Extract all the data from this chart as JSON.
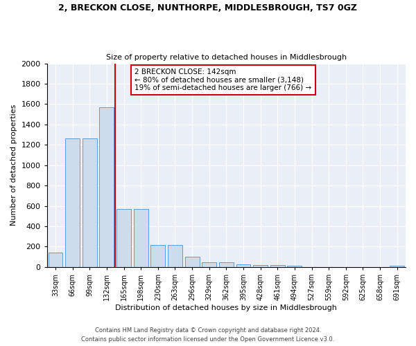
{
  "title1": "2, BRECKON CLOSE, NUNTHORPE, MIDDLESBROUGH, TS7 0GZ",
  "title2": "Size of property relative to detached houses in Middlesbrough",
  "xlabel": "Distribution of detached houses by size in Middlesbrough",
  "ylabel": "Number of detached properties",
  "categories": [
    "33sqm",
    "66sqm",
    "99sqm",
    "132sqm",
    "165sqm",
    "198sqm",
    "230sqm",
    "263sqm",
    "296sqm",
    "329sqm",
    "362sqm",
    "395sqm",
    "428sqm",
    "461sqm",
    "494sqm",
    "527sqm",
    "559sqm",
    "592sqm",
    "625sqm",
    "658sqm",
    "691sqm"
  ],
  "values": [
    140,
    1265,
    1265,
    1570,
    570,
    570,
    215,
    215,
    100,
    50,
    50,
    25,
    20,
    20,
    15,
    0,
    0,
    0,
    0,
    0,
    15
  ],
  "bar_color": "#ccdcec",
  "bar_edge_color": "#6699cc",
  "red_line_index": 3,
  "property_label": "2 BRECKON CLOSE: 142sqm",
  "annotation_line1": "← 80% of detached houses are smaller (3,148)",
  "annotation_line2": "19% of semi-detached houses are larger (766) →",
  "vline_color": "#cc0000",
  "background_color": "#eaeff7",
  "footnote1": "Contains HM Land Registry data © Crown copyright and database right 2024.",
  "footnote2": "Contains public sector information licensed under the Open Government Licence v3.0.",
  "ylim": [
    0,
    2000
  ],
  "yticks": [
    0,
    200,
    400,
    600,
    800,
    1000,
    1200,
    1400,
    1600,
    1800,
    2000
  ]
}
